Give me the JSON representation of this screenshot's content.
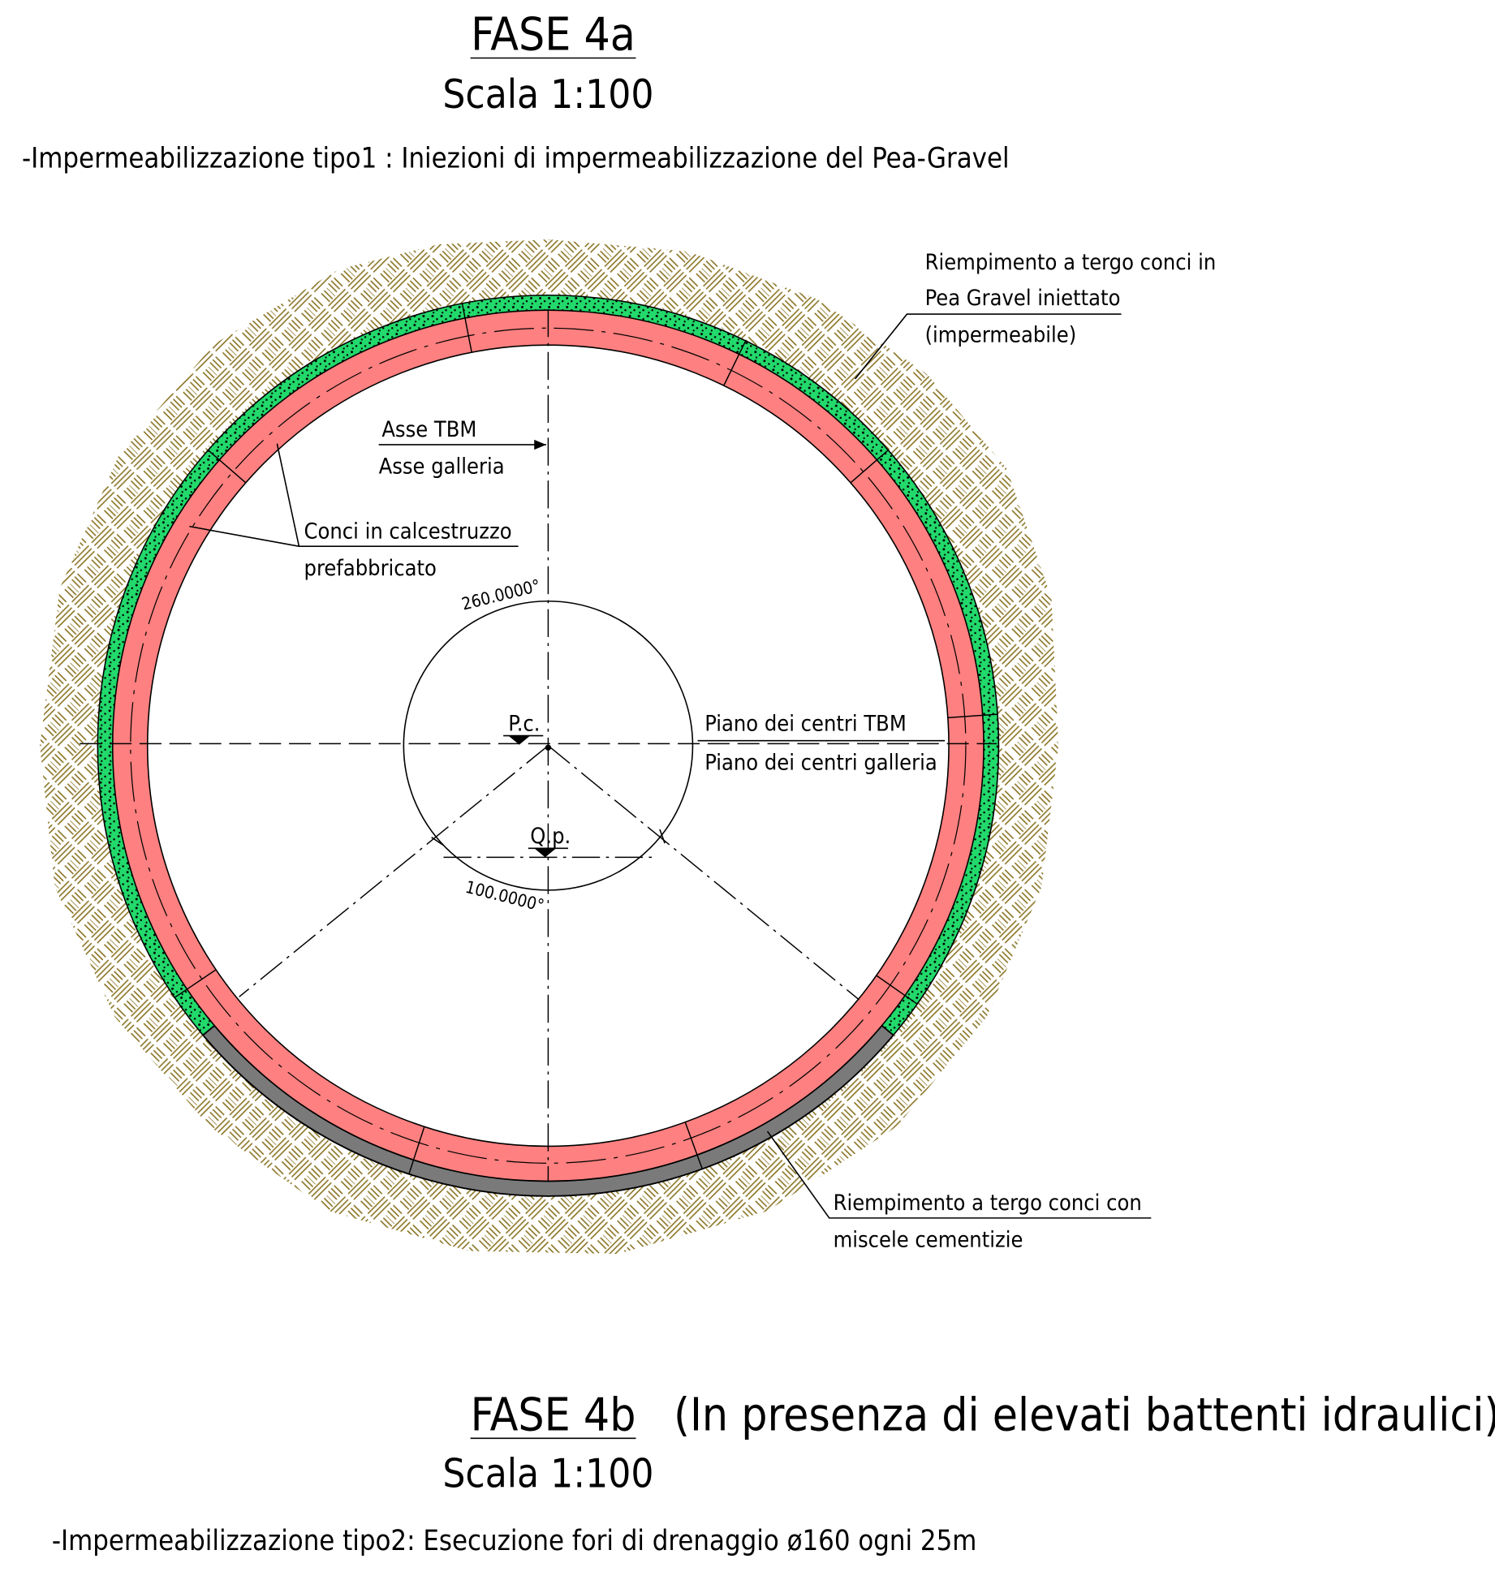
{
  "fase_a": {
    "title": "FASE 4a",
    "scale": "Scala 1:100",
    "description": "-Impermeabilizzazione tipo1 : Iniezioni di impermeabilizzazione del Pea-Gravel"
  },
  "labels": {
    "pea_gravel": [
      "Riempimento a tergo conci in",
      "Pea Gravel iniettato",
      "(impermeabile)"
    ],
    "asse": [
      "Asse TBM",
      "Asse galleria"
    ],
    "conci": [
      "Conci in calcestruzzo",
      "prefabbricato"
    ],
    "piano": [
      "Piano dei centri TBM",
      "Piano dei centri galleria"
    ],
    "cementizie": [
      "Riempimento a tergo conci con",
      "miscele cementizie"
    ],
    "angle_top": "260.0000°",
    "angle_bottom": "100.0000°",
    "pc": "P.c.",
    "qp": "Q.p."
  },
  "fase_b": {
    "title": "FASE 4b",
    "subtitle": "(In presenza di elevati battenti idraulici)",
    "scale": "Scala 1:100",
    "description": "-Impermeabilizzazione tipo2: Esecuzione fori di drenaggio ø160 ogni 25m"
  }
}
